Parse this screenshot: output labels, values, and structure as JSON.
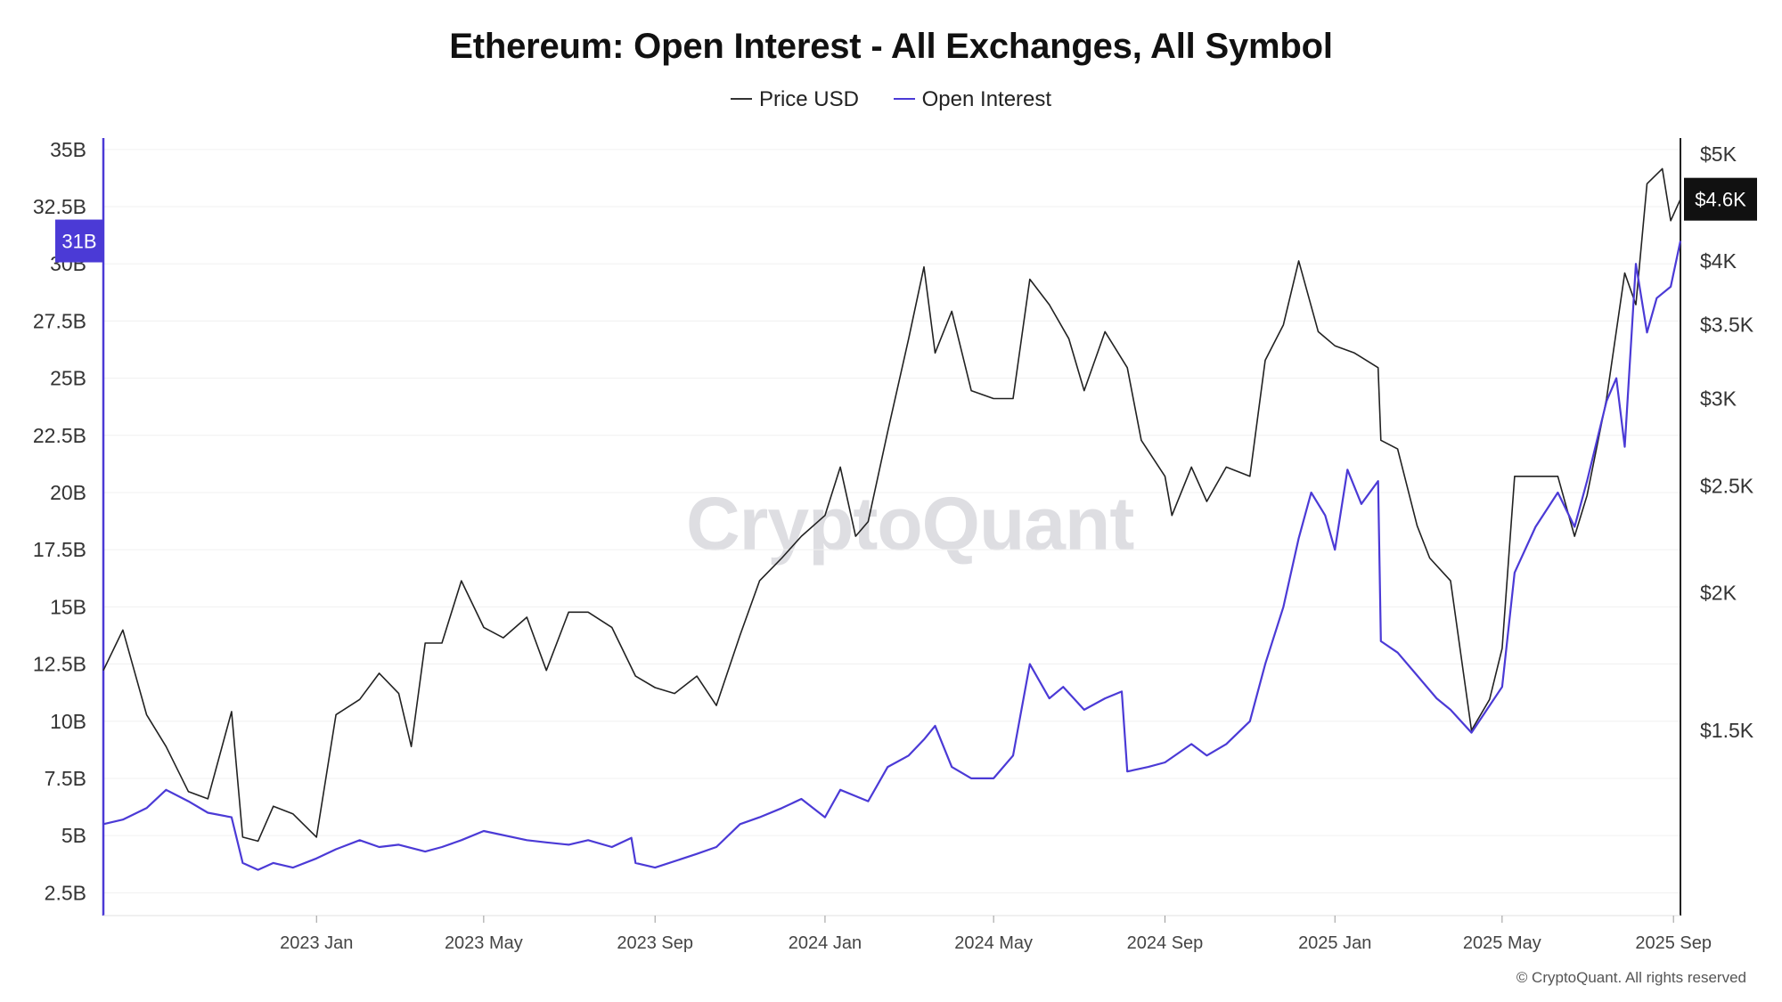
{
  "title": "Ethereum: Open Interest - All Exchanges, All Symbol",
  "watermark": "CryptoQuant",
  "copyright": "© CryptoQuant. All rights reserved",
  "colors": {
    "price": "#222222",
    "open_interest": "#4b3ad6",
    "badge_price": "#111111",
    "badge_oi": "#4b3ad6"
  },
  "chart_data": {
    "type": "line",
    "title": "Ethereum: Open Interest - All Exchanges, All Symbol",
    "legend_position": "top-center",
    "grid": true,
    "x_ticks": [
      "2023 Jan",
      "2023 May",
      "2023 Sep",
      "2024 Jan",
      "2024 May",
      "2024 Sep",
      "2025 Jan",
      "2025 May",
      "2025 Sep"
    ],
    "x_tick_dates": [
      "2023-01-01",
      "2023-05-01",
      "2023-09-01",
      "2024-01-01",
      "2024-05-01",
      "2024-09-01",
      "2025-01-01",
      "2025-05-01",
      "2025-09-01"
    ],
    "xlim": [
      "2022-08-01",
      "2025-09-06"
    ],
    "y_left": {
      "label": "",
      "unit": "B",
      "ylim": [
        1.5,
        35.5
      ],
      "ticks": [
        "2.5B",
        "5B",
        "7.5B",
        "10B",
        "12.5B",
        "15B",
        "17.5B",
        "20B",
        "22.5B",
        "25B",
        "27.5B",
        "30B",
        "32.5B",
        "35B"
      ],
      "tick_values": [
        2.5,
        5,
        7.5,
        10,
        12.5,
        15,
        17.5,
        20,
        22.5,
        25,
        27.5,
        30,
        32.5,
        35
      ]
    },
    "y_right": {
      "label": "",
      "scale": "log",
      "ticks": [
        "$1.5K",
        "$2K",
        "$2.5K",
        "$3K",
        "$3.5K",
        "$4K",
        "$5K"
      ],
      "tick_values": [
        1500,
        2000,
        2500,
        3000,
        3500,
        4000,
        5000
      ]
    },
    "series": [
      {
        "name": "Price USD",
        "axis": "right",
        "x": [
          "2022-08-01",
          "2022-08-15",
          "2022-09-01",
          "2022-09-15",
          "2022-10-01",
          "2022-10-15",
          "2022-11-01",
          "2022-11-09",
          "2022-11-20",
          "2022-12-01",
          "2022-12-15",
          "2023-01-01",
          "2023-01-15",
          "2023-02-01",
          "2023-02-15",
          "2023-03-01",
          "2023-03-10",
          "2023-03-20",
          "2023-04-01",
          "2023-04-15",
          "2023-05-01",
          "2023-05-15",
          "2023-06-01",
          "2023-06-15",
          "2023-07-01",
          "2023-07-15",
          "2023-08-01",
          "2023-08-18",
          "2023-09-01",
          "2023-09-15",
          "2023-10-01",
          "2023-10-15",
          "2023-11-01",
          "2023-11-15",
          "2023-12-01",
          "2023-12-15",
          "2024-01-01",
          "2024-01-12",
          "2024-01-23",
          "2024-02-01",
          "2024-02-15",
          "2024-03-01",
          "2024-03-12",
          "2024-03-20",
          "2024-04-01",
          "2024-04-15",
          "2024-05-01",
          "2024-05-15",
          "2024-05-27",
          "2024-06-10",
          "2024-06-24",
          "2024-07-05",
          "2024-07-20",
          "2024-08-05",
          "2024-08-15",
          "2024-09-01",
          "2024-09-06",
          "2024-09-20",
          "2024-10-01",
          "2024-10-15",
          "2024-11-01",
          "2024-11-12",
          "2024-11-25",
          "2024-12-06",
          "2024-12-20",
          "2025-01-01",
          "2025-01-15",
          "2025-02-01",
          "2025-02-03",
          "2025-02-15",
          "2025-03-01",
          "2025-03-10",
          "2025-03-25",
          "2025-04-09",
          "2025-04-22",
          "2025-05-01",
          "2025-05-10",
          "2025-05-25",
          "2025-06-10",
          "2025-06-22",
          "2025-07-01",
          "2025-07-15",
          "2025-07-28",
          "2025-08-05",
          "2025-08-13",
          "2025-08-24",
          "2025-08-30",
          "2025-09-06"
        ],
        "values": [
          1700,
          1850,
          1550,
          1450,
          1320,
          1300,
          1560,
          1200,
          1190,
          1280,
          1260,
          1200,
          1550,
          1600,
          1690,
          1620,
          1450,
          1800,
          1800,
          2050,
          1860,
          1820,
          1900,
          1700,
          1920,
          1920,
          1860,
          1680,
          1640,
          1620,
          1680,
          1580,
          1830,
          2050,
          2150,
          2250,
          2350,
          2600,
          2250,
          2320,
          2800,
          3400,
          3950,
          3300,
          3600,
          3050,
          3000,
          3000,
          3850,
          3650,
          3400,
          3050,
          3450,
          3200,
          2750,
          2550,
          2350,
          2600,
          2420,
          2600,
          2550,
          3250,
          3500,
          4000,
          3450,
          3350,
          3300,
          3200,
          2750,
          2700,
          2300,
          2150,
          2050,
          1500,
          1600,
          1780,
          2550,
          2550,
          2550,
          2250,
          2450,
          3000,
          3900,
          3650,
          4700,
          4850,
          4350,
          4550
        ]
      },
      {
        "name": "Open Interest",
        "axis": "left",
        "unit": "B",
        "x": [
          "2022-08-01",
          "2022-08-15",
          "2022-09-01",
          "2022-09-15",
          "2022-10-01",
          "2022-10-15",
          "2022-11-01",
          "2022-11-09",
          "2022-11-20",
          "2022-12-01",
          "2022-12-15",
          "2023-01-01",
          "2023-01-15",
          "2023-02-01",
          "2023-02-15",
          "2023-03-01",
          "2023-03-20",
          "2023-04-01",
          "2023-04-15",
          "2023-05-01",
          "2023-06-01",
          "2023-06-15",
          "2023-07-01",
          "2023-07-15",
          "2023-08-01",
          "2023-08-15",
          "2023-08-18",
          "2023-09-01",
          "2023-10-01",
          "2023-10-15",
          "2023-11-01",
          "2023-11-15",
          "2023-12-01",
          "2023-12-15",
          "2024-01-01",
          "2024-01-12",
          "2024-02-01",
          "2024-02-15",
          "2024-03-01",
          "2024-03-12",
          "2024-03-20",
          "2024-04-01",
          "2024-04-15",
          "2024-05-01",
          "2024-05-15",
          "2024-05-27",
          "2024-06-10",
          "2024-06-20",
          "2024-07-05",
          "2024-07-20",
          "2024-08-01",
          "2024-08-05",
          "2024-08-20",
          "2024-09-01",
          "2024-09-20",
          "2024-10-01",
          "2024-10-15",
          "2024-11-01",
          "2024-11-12",
          "2024-11-25",
          "2024-12-06",
          "2024-12-15",
          "2024-12-25",
          "2025-01-01",
          "2025-01-10",
          "2025-01-20",
          "2025-02-01",
          "2025-02-03",
          "2025-02-15",
          "2025-03-01",
          "2025-03-15",
          "2025-03-25",
          "2025-04-09",
          "2025-04-20",
          "2025-05-01",
          "2025-05-10",
          "2025-05-25",
          "2025-06-10",
          "2025-06-22",
          "2025-07-01",
          "2025-07-15",
          "2025-07-22",
          "2025-07-28",
          "2025-08-05",
          "2025-08-13",
          "2025-08-20",
          "2025-08-30",
          "2025-09-06"
        ],
        "values": [
          5.5,
          5.7,
          6.2,
          7.0,
          6.5,
          6.0,
          5.8,
          3.8,
          3.5,
          3.8,
          3.6,
          4.0,
          4.4,
          4.8,
          4.5,
          4.6,
          4.3,
          4.5,
          4.8,
          5.2,
          4.8,
          4.7,
          4.6,
          4.8,
          4.5,
          4.9,
          3.8,
          3.6,
          4.2,
          4.5,
          5.5,
          5.8,
          6.2,
          6.6,
          5.8,
          7.0,
          6.5,
          8.0,
          8.5,
          9.2,
          9.8,
          8.0,
          7.5,
          7.5,
          8.5,
          12.5,
          11.0,
          11.5,
          10.5,
          11.0,
          11.3,
          7.8,
          8.0,
          8.2,
          9.0,
          8.5,
          9.0,
          10.0,
          12.5,
          15.0,
          18.0,
          20.0,
          19.0,
          17.5,
          21.0,
          19.5,
          20.5,
          13.5,
          13.0,
          12.0,
          11.0,
          10.5,
          9.5,
          10.5,
          11.5,
          16.5,
          18.5,
          20.0,
          18.5,
          20.5,
          24.0,
          25.0,
          22.0,
          30.0,
          27.0,
          28.5,
          29.0,
          31.0
        ]
      }
    ],
    "current_badges": {
      "price": "$4.6K",
      "open_interest": "31B"
    }
  }
}
